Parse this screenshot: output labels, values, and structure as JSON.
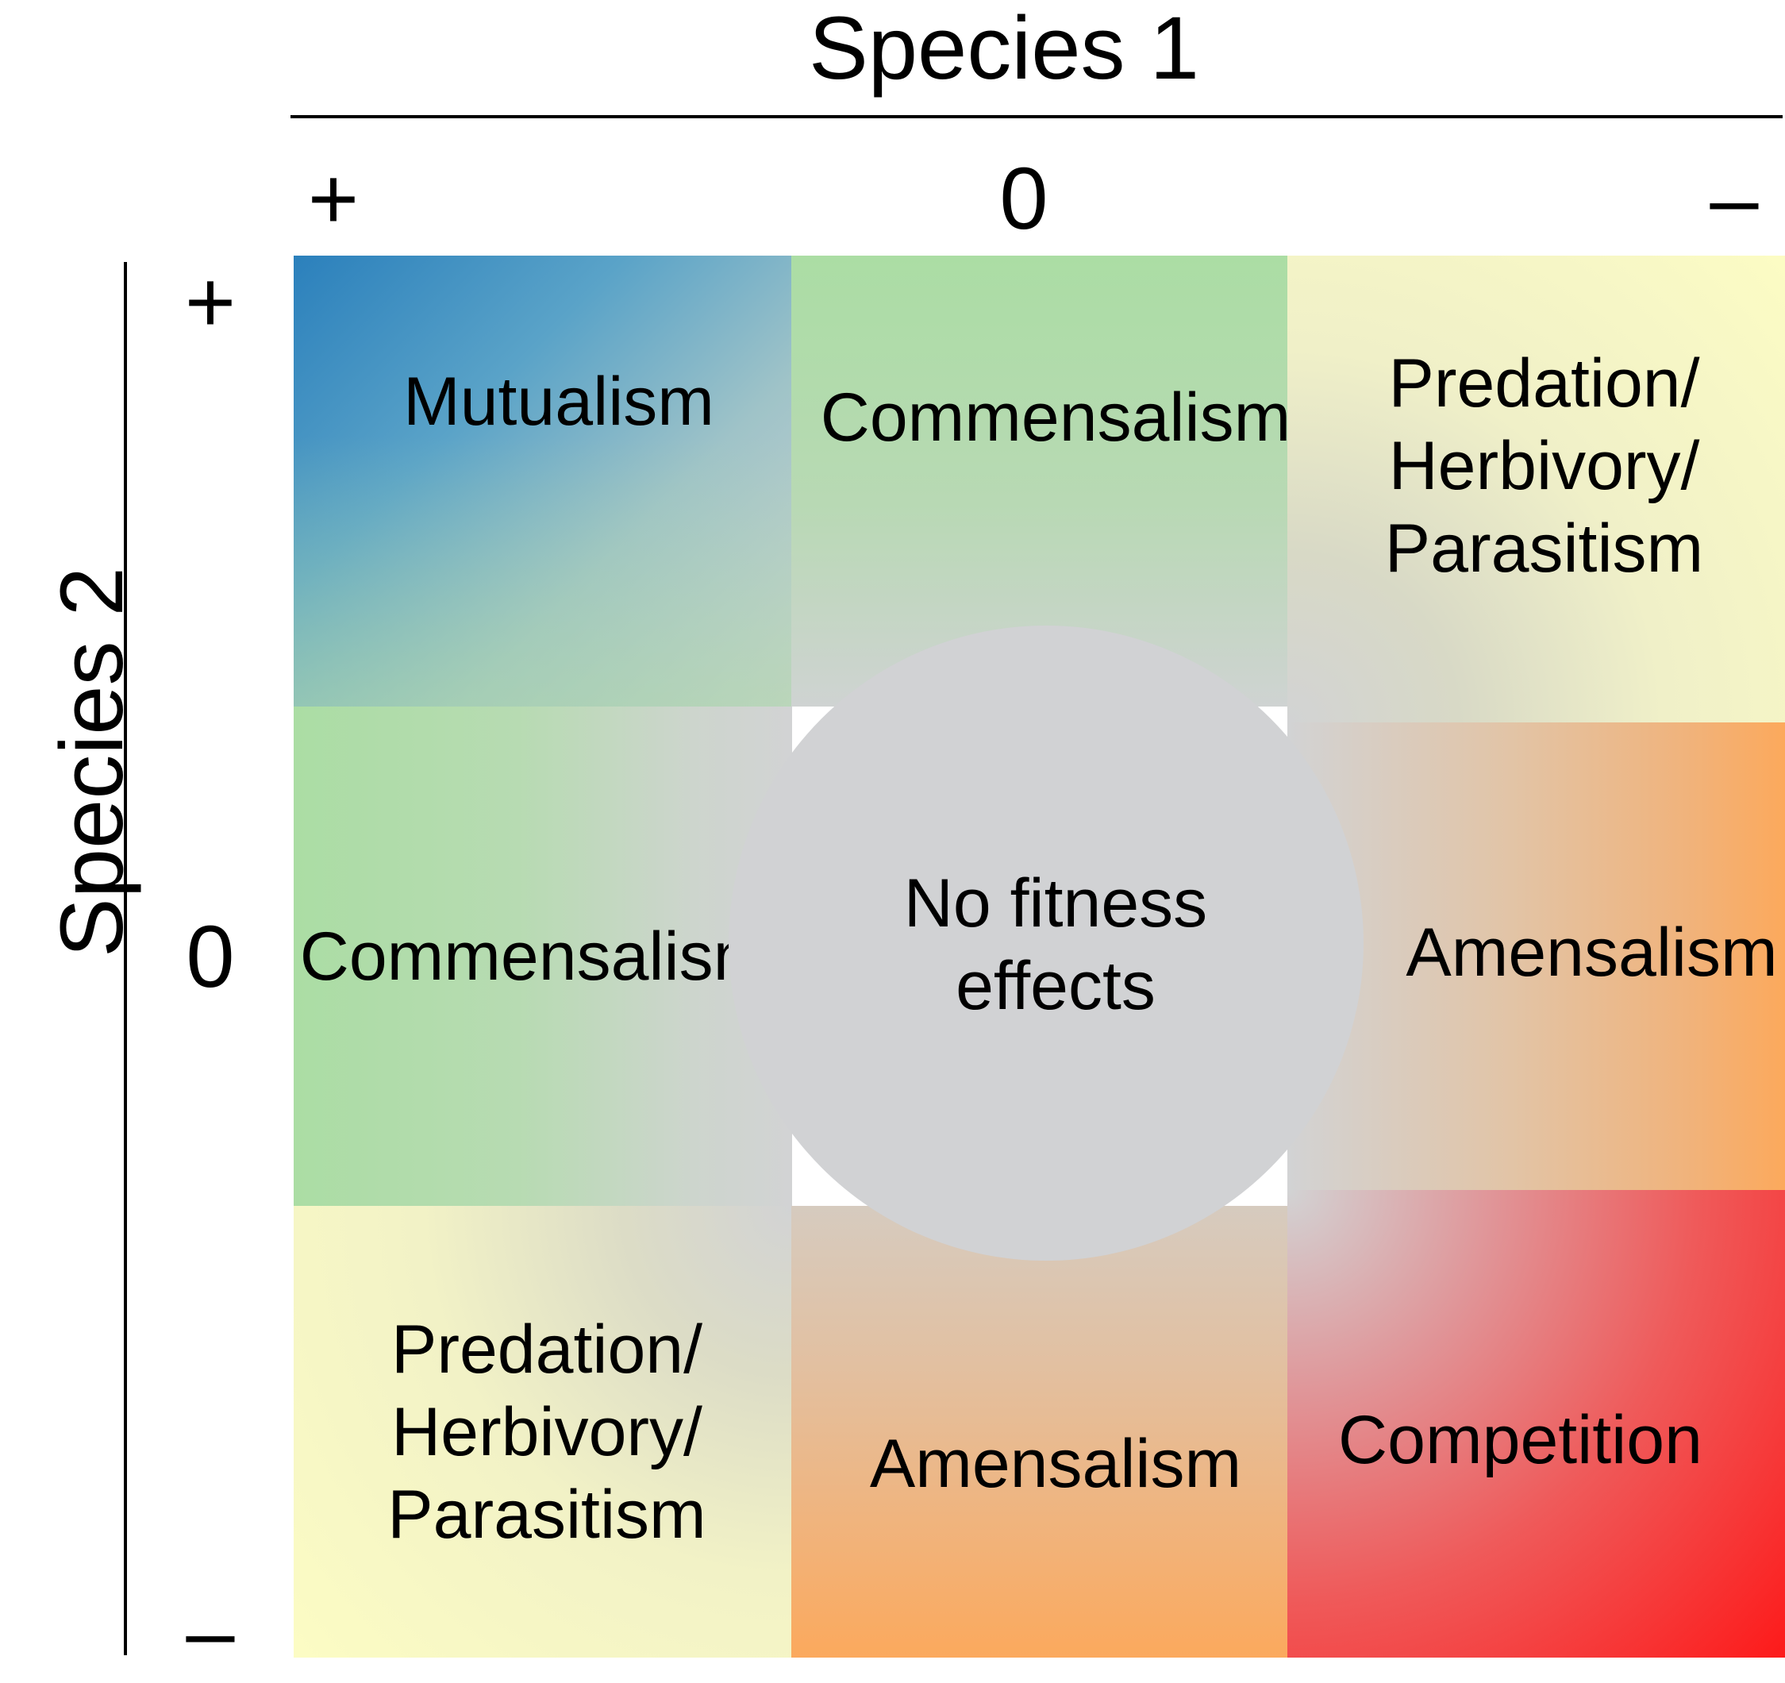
{
  "axes": {
    "species1": "Species 1",
    "species2": "Species 2",
    "columns": [
      "+",
      "0",
      "–"
    ],
    "rows": [
      "+",
      "0",
      "–"
    ]
  },
  "cells": {
    "mutualism": "Mutualism",
    "commensalism_top": "Commensalism",
    "predation_top": "Predation/\nHerbivory/\nParasitism",
    "commensalism_left": "Commensalism",
    "amensalism_right": "Amensalism",
    "predation_bottom": "Predation/\nHerbivory/\nParasitism",
    "amensalism_bottom": "Amensalism",
    "competition": "Competition",
    "no_effect": "No fitness\neffects"
  },
  "colors": {
    "mutualism": "#2b80bc",
    "commensalism": "#abdda4",
    "predation": "#fcfcc4",
    "amensalism": "#fca95c",
    "competition": "#fd1a1a",
    "neutral": "#d1d2d4"
  }
}
